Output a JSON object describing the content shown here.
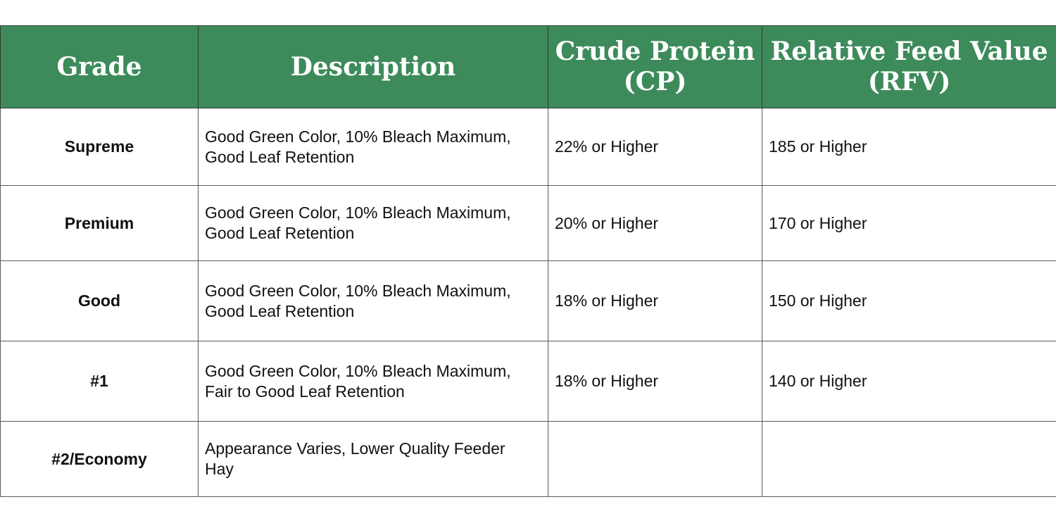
{
  "table": {
    "headers": {
      "grade": "Grade",
      "description": "Description",
      "cp_line1": "Crude Protein",
      "cp_line2": "(CP)",
      "rfv_line1": "Relative Feed Value",
      "rfv_line2": "(RFV)"
    },
    "rows": [
      {
        "grade": "Supreme",
        "desc_line1": "Good Green Color, 10% Bleach Maximum,",
        "desc_line2": "Good Leaf Retention",
        "cp": "22% or Higher",
        "rfv": "185 or Higher"
      },
      {
        "grade": "Premium",
        "desc_line1": "Good Green Color, 10% Bleach Maximum,",
        "desc_line2": "Good Leaf Retention",
        "cp": "20% or Higher",
        "rfv": "170 or Higher"
      },
      {
        "grade": "Good",
        "desc_line1": "Good Green Color, 10% Bleach Maximum,",
        "desc_line2": "Good Leaf Retention",
        "cp": "18% or Higher",
        "rfv": "150 or Higher"
      },
      {
        "grade": "#1",
        "desc_line1": "Good Green Color, 10% Bleach Maximum,",
        "desc_line2": "Fair to Good Leaf Retention",
        "cp": "18% or Higher",
        "rfv": "140 or Higher"
      },
      {
        "grade": "#2/Economy",
        "desc_line1": "Appearance Varies, Lower Quality Feeder",
        "desc_line2": "Hay",
        "cp": "",
        "rfv": ""
      }
    ]
  },
  "colors": {
    "header_background": "#3d8b5b",
    "header_text": "#ffffff",
    "border": "#5a5a5a"
  }
}
